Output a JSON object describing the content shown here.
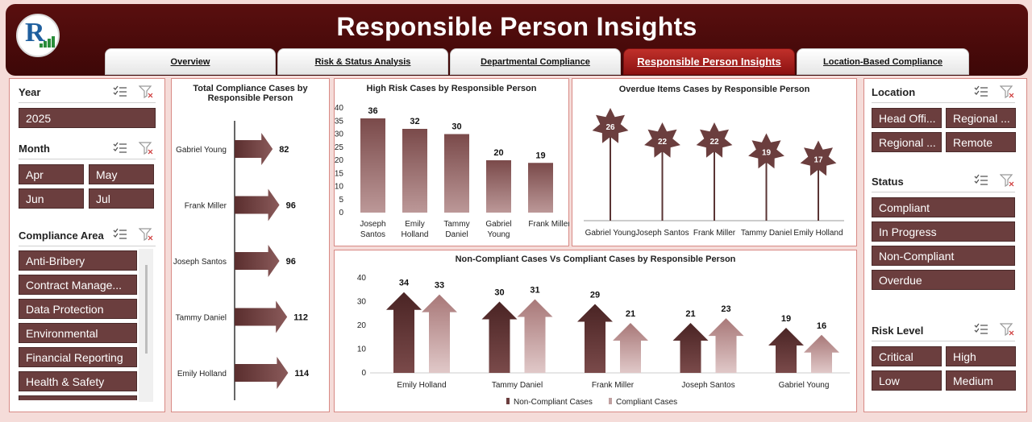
{
  "header": {
    "title": "Responsible Person Insights"
  },
  "tabs": [
    {
      "label": "Overview",
      "active": false
    },
    {
      "label": "Risk & Status Analysis",
      "active": false
    },
    {
      "label": "Departmental Compliance",
      "active": false
    },
    {
      "label": "Responsible Person Insights",
      "active": true
    },
    {
      "label": "Location-Based Compliance",
      "active": false
    }
  ],
  "left_slicers": {
    "year": {
      "title": "Year",
      "items": [
        "2025"
      ]
    },
    "month": {
      "title": "Month",
      "items": [
        "Apr",
        "May",
        "Jun",
        "Jul"
      ]
    },
    "area": {
      "title": "Compliance Area",
      "items": [
        "Anti-Bribery",
        "Contract Manage...",
        "Data Protection",
        "Environmental",
        "Financial Reporting",
        "Health & Safety"
      ]
    }
  },
  "right_slicers": {
    "location": {
      "title": "Location",
      "items": [
        "Head Offi...",
        "Regional ...",
        "Regional ...",
        "Remote"
      ]
    },
    "status": {
      "title": "Status",
      "items": [
        "Compliant",
        "In Progress",
        "Non-Compliant",
        "Overdue"
      ]
    },
    "risk": {
      "title": "Risk Level",
      "items": [
        "Critical",
        "High",
        "Low",
        "Medium"
      ]
    }
  },
  "colors": {
    "header": "#4a0b0b",
    "slicer_button": "#6b3e3e",
    "bar": "#7a4a4a",
    "bar_light": "#a87878",
    "border": "#d88a85"
  },
  "chart_data": [
    {
      "id": "total",
      "type": "bar",
      "title": "Total Compliance Cases by Responsible Person",
      "categories": [
        "Gabriel Young",
        "Frank Miller",
        "Joseph Santos",
        "Tammy Daniel",
        "Emily Holland"
      ],
      "values": [
        82,
        96,
        96,
        112,
        114
      ]
    },
    {
      "id": "highrisk",
      "type": "bar",
      "title": "High Risk Cases by Responsible Person",
      "categories": [
        "Joseph Santos",
        "Emily Holland",
        "Tammy Daniel",
        "Gabriel Young",
        "Frank Miller"
      ],
      "values": [
        36,
        32,
        30,
        20,
        19
      ],
      "yticks": [
        "0",
        "5",
        "10",
        "15",
        "20",
        "25",
        "30",
        "35",
        "40"
      ],
      "ylim": [
        0,
        40
      ]
    },
    {
      "id": "overdue",
      "type": "scatter",
      "title": "Overdue Items Cases by Responsible Person",
      "categories": [
        "Gabriel Young",
        "Joseph Santos",
        "Frank Miller",
        "Tammy Daniel",
        "Emily Holland"
      ],
      "values": [
        26,
        22,
        22,
        19,
        17
      ]
    },
    {
      "id": "noncomp",
      "type": "bar",
      "title": "Non-Compliant Cases Vs Compliant Cases by Responsible Person",
      "categories": [
        "Emily Holland",
        "Tammy Daniel",
        "Frank Miller",
        "Joseph Santos",
        "Gabriel Young"
      ],
      "series": [
        {
          "name": "Non-Compliant Cases",
          "values": [
            34,
            30,
            29,
            21,
            19
          ]
        },
        {
          "name": "Compliant Cases",
          "values": [
            33,
            31,
            21,
            23,
            16
          ]
        }
      ],
      "yticks": [
        "0",
        "10",
        "20",
        "30",
        "40"
      ],
      "ylim": [
        0,
        40
      ]
    }
  ]
}
